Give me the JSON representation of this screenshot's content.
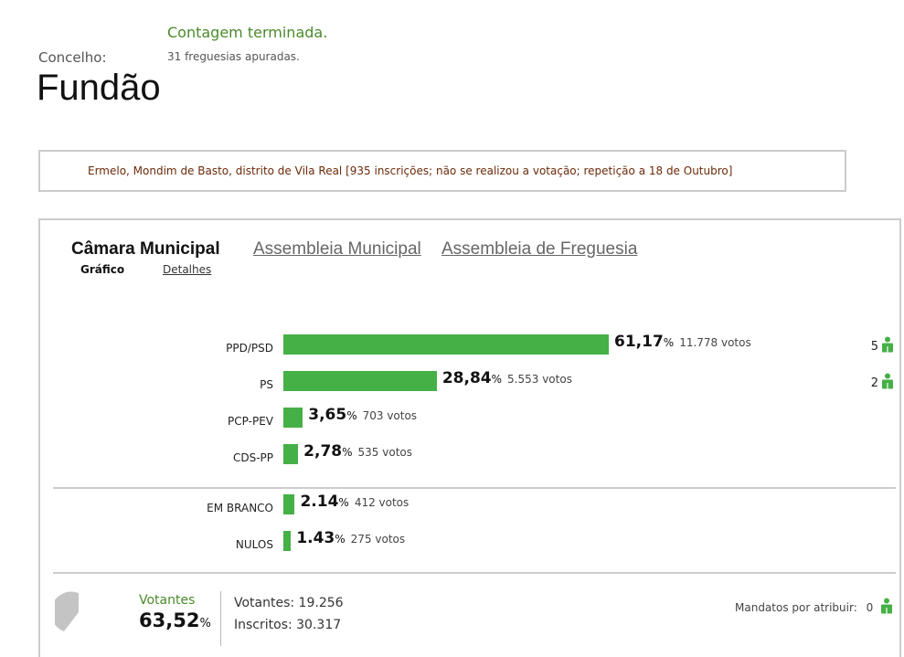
{
  "status": {
    "title": "Contagem terminada.",
    "subtitle": "31 freguesias apuradas."
  },
  "concelho": {
    "label": "Concelho:",
    "name": "Fundão"
  },
  "notice": "Ermelo, Mondim de Basto, distrito de Vila Real [935 inscrições; não se realizou a votação; repetição a 18 de Outubro]",
  "tabs": [
    {
      "label": "Câmara Municipal",
      "active": true
    },
    {
      "label": "Assembleia Municipal",
      "active": false
    },
    {
      "label": "Assembleia de Freguesia",
      "active": false
    }
  ],
  "subtabs": [
    {
      "label": "Gráfico",
      "active": true
    },
    {
      "label": "Detalhes",
      "active": false
    }
  ],
  "chart_data": {
    "type": "bar",
    "categories": [
      "PPD/PSD",
      "PS",
      "PCP-PEV",
      "CDS-PP",
      "EM BRANCO",
      "NULOS"
    ],
    "values": [
      61.17,
      28.84,
      3.65,
      2.78,
      2.14,
      1.43
    ],
    "value_labels": [
      "61,17",
      "28,84",
      "3,65",
      "2,78",
      "2.14",
      "1.43"
    ],
    "votes": [
      "11.778 votos",
      "5.553 votos",
      "703 votos",
      "535 votos",
      "412 votos",
      "275 votos"
    ],
    "seats": [
      "5",
      "2",
      "",
      "",
      "",
      ""
    ],
    "unit": "%",
    "bar_color": "#45b045"
  },
  "summary": {
    "votantes_label": "Votantes",
    "votantes_pct": "63,52",
    "pct_symbol": "%",
    "votantes_count": "Votantes: 19.256",
    "inscritos_count": "Inscritos: 30.317",
    "mandatos_label": "Mandatos por atribuir:",
    "mandatos_value": "0",
    "participation_fraction": 0.6352
  },
  "colors": {
    "accent_green": "#4a8a2a",
    "bar_green": "#45b045",
    "notice_text": "#6b2a0a"
  },
  "icons": {
    "seat": "person-icon"
  }
}
